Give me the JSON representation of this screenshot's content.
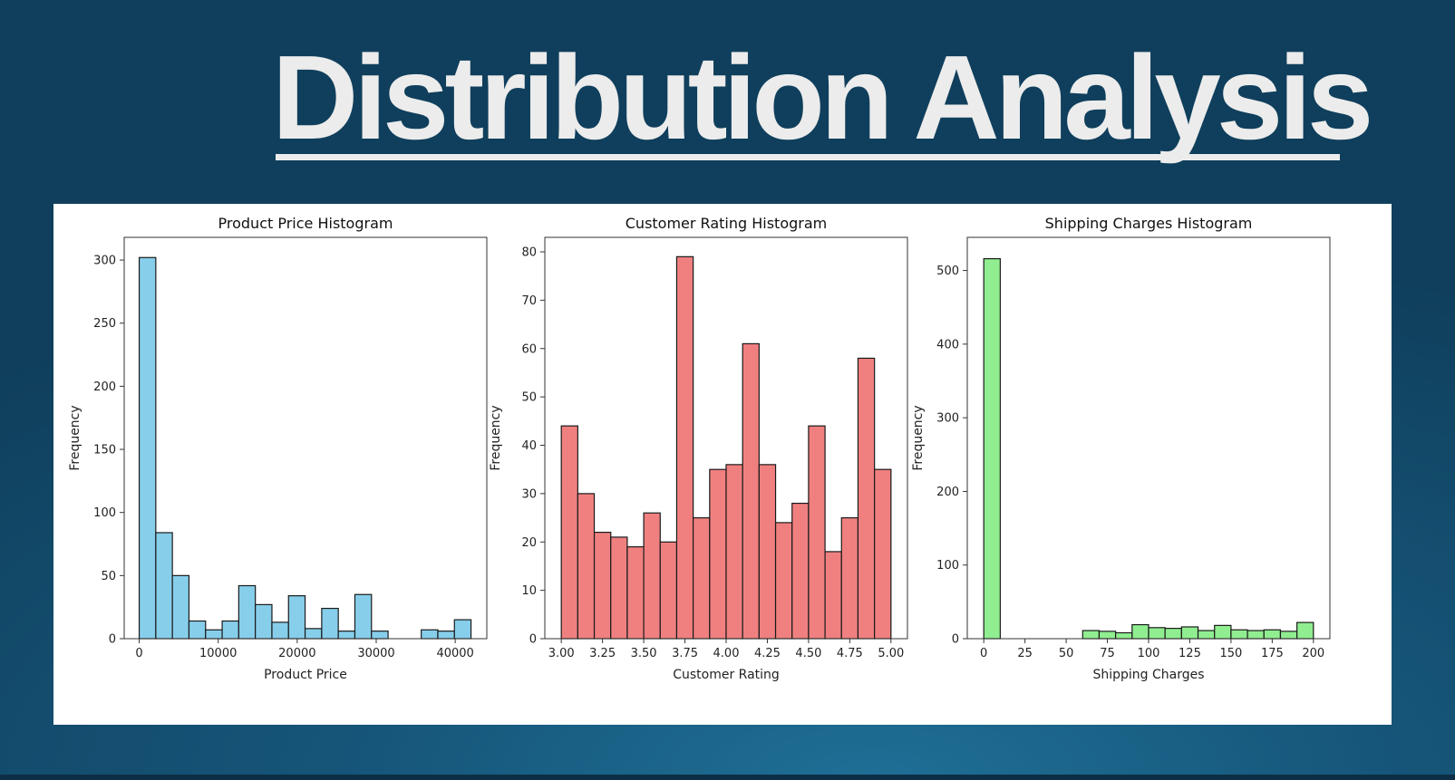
{
  "slide": {
    "title": "Distribution Analysis"
  },
  "chart_data": [
    {
      "type": "bar",
      "title": "Product Price Histogram",
      "xlabel": "Product Price",
      "ylabel": "Frequency",
      "bar_color": "#87ceeb",
      "edge_color": "#1a1a1a",
      "bins": [
        [
          0,
          2100,
          302
        ],
        [
          2100,
          4200,
          84
        ],
        [
          4200,
          6300,
          50
        ],
        [
          6300,
          8400,
          14
        ],
        [
          8400,
          10500,
          7
        ],
        [
          10500,
          12600,
          14
        ],
        [
          12600,
          14700,
          42
        ],
        [
          14700,
          16800,
          27
        ],
        [
          16800,
          18900,
          13
        ],
        [
          18900,
          21000,
          34
        ],
        [
          21000,
          23100,
          8
        ],
        [
          23100,
          25200,
          24
        ],
        [
          25200,
          27300,
          6
        ],
        [
          27300,
          29400,
          35
        ],
        [
          29400,
          31500,
          6
        ],
        [
          31500,
          33600,
          0
        ],
        [
          33600,
          35700,
          0
        ],
        [
          35700,
          37800,
          7
        ],
        [
          37800,
          39900,
          6
        ],
        [
          39900,
          42000,
          15
        ]
      ],
      "xlim": [
        -1900,
        44000
      ],
      "ylim": [
        0,
        318
      ],
      "xticks": [
        0,
        10000,
        20000,
        30000,
        40000
      ],
      "xtick_labels": [
        "0",
        "10000",
        "20000",
        "30000",
        "40000"
      ],
      "yticks": [
        0,
        50,
        100,
        150,
        200,
        250,
        300
      ],
      "ytick_labels": [
        "0",
        "50",
        "100",
        "150",
        "200",
        "250",
        "300"
      ],
      "grid": false
    },
    {
      "type": "bar",
      "title": "Customer Rating Histogram",
      "xlabel": "Customer Rating",
      "ylabel": "Frequency",
      "bar_color": "#f08080",
      "edge_color": "#1a1a1a",
      "bins": [
        [
          3.0,
          3.1,
          44
        ],
        [
          3.1,
          3.2,
          30
        ],
        [
          3.2,
          3.3,
          22
        ],
        [
          3.3,
          3.4,
          21
        ],
        [
          3.4,
          3.5,
          19
        ],
        [
          3.5,
          3.6,
          26
        ],
        [
          3.6,
          3.7,
          20
        ],
        [
          3.7,
          3.8,
          79
        ],
        [
          3.8,
          3.9,
          25
        ],
        [
          3.9,
          4.0,
          35
        ],
        [
          4.0,
          4.1,
          36
        ],
        [
          4.1,
          4.2,
          61
        ],
        [
          4.2,
          4.3,
          36
        ],
        [
          4.3,
          4.4,
          24
        ],
        [
          4.4,
          4.5,
          28
        ],
        [
          4.5,
          4.6,
          44
        ],
        [
          4.6,
          4.7,
          18
        ],
        [
          4.7,
          4.8,
          25
        ],
        [
          4.8,
          4.9,
          58
        ],
        [
          4.9,
          5.0,
          35
        ]
      ],
      "xlim": [
        2.9,
        5.1
      ],
      "ylim": [
        0,
        83
      ],
      "xticks": [
        3.0,
        3.25,
        3.5,
        3.75,
        4.0,
        4.25,
        4.5,
        4.75,
        5.0
      ],
      "xtick_labels": [
        "3.00",
        "3.25",
        "3.50",
        "3.75",
        "4.00",
        "4.25",
        "4.50",
        "4.75",
        "5.00"
      ],
      "yticks": [
        0,
        10,
        20,
        30,
        40,
        50,
        60,
        70,
        80
      ],
      "ytick_labels": [
        "0",
        "10",
        "20",
        "30",
        "40",
        "50",
        "60",
        "70",
        "80"
      ],
      "grid": false
    },
    {
      "type": "bar",
      "title": "Shipping Charges Histogram",
      "xlabel": "Shipping Charges",
      "ylabel": "Frequency",
      "bar_color": "#90ee90",
      "edge_color": "#1a1a1a",
      "bins": [
        [
          0,
          10,
          516
        ],
        [
          10,
          20,
          0
        ],
        [
          20,
          30,
          0
        ],
        [
          30,
          40,
          0
        ],
        [
          40,
          50,
          0
        ],
        [
          50,
          60,
          0
        ],
        [
          60,
          70,
          11
        ],
        [
          70,
          80,
          10
        ],
        [
          80,
          90,
          8
        ],
        [
          90,
          100,
          19
        ],
        [
          100,
          110,
          15
        ],
        [
          110,
          120,
          14
        ],
        [
          120,
          130,
          16
        ],
        [
          130,
          140,
          11
        ],
        [
          140,
          150,
          18
        ],
        [
          150,
          160,
          12
        ],
        [
          160,
          170,
          11
        ],
        [
          170,
          180,
          12
        ],
        [
          180,
          190,
          10
        ],
        [
          190,
          200,
          22
        ]
      ],
      "xlim": [
        -10,
        210
      ],
      "ylim": [
        0,
        545
      ],
      "xticks": [
        0,
        25,
        50,
        75,
        100,
        125,
        150,
        175,
        200
      ],
      "xtick_labels": [
        "0",
        "25",
        "50",
        "75",
        "100",
        "125",
        "150",
        "175",
        "200"
      ],
      "yticks": [
        0,
        100,
        200,
        300,
        400,
        500
      ],
      "ytick_labels": [
        "0",
        "100",
        "200",
        "300",
        "400",
        "500"
      ],
      "grid": false
    }
  ]
}
